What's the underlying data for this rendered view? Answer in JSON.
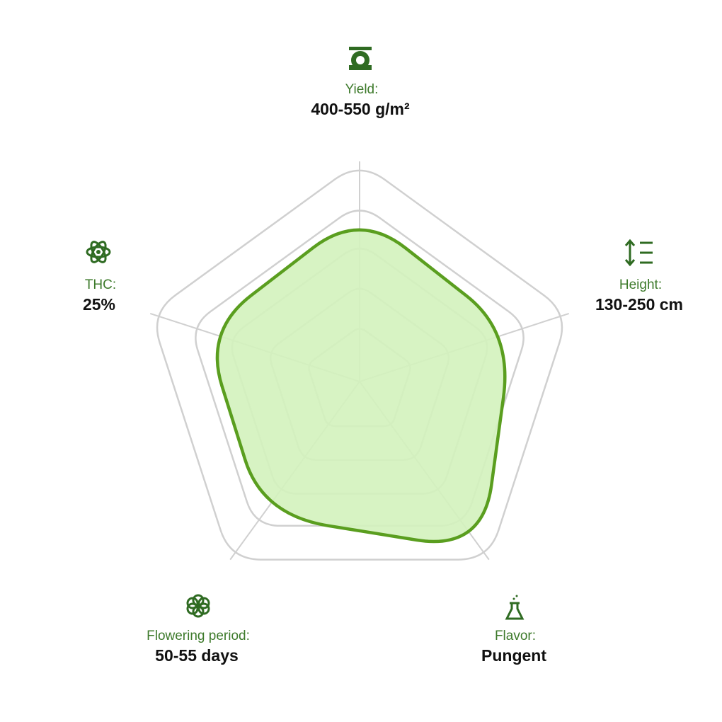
{
  "chart_data": {
    "type": "radar",
    "categories": [
      "Yield:",
      "Height:",
      "Flavor:",
      "Flowering period:",
      "THC:"
    ],
    "details": [
      "400-550 g/m²",
      "130-250 cm",
      "Pungent",
      "50-55 days",
      "25%"
    ],
    "values": [
      77,
      73,
      95,
      75,
      74
    ],
    "ylim": [
      0,
      100
    ],
    "yticks": [
      25,
      44,
      63,
      81,
      100
    ],
    "grid": true,
    "color": "#5a9e1f",
    "fill_color": "#d3f2bd"
  }
}
